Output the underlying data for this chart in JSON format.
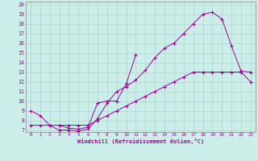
{
  "xlabel": "Windchill (Refroidissement éolien,°C)",
  "bg_color": "#cceee8",
  "line_color": "#990099",
  "grid_color": "#aacccc",
  "xlim": [
    -0.5,
    23.5
  ],
  "ylim": [
    6.8,
    20.3
  ],
  "xticks": [
    0,
    1,
    2,
    3,
    4,
    5,
    6,
    7,
    8,
    9,
    10,
    11,
    12,
    13,
    14,
    15,
    16,
    17,
    18,
    19,
    20,
    21,
    22,
    23
  ],
  "yticks": [
    7,
    8,
    9,
    10,
    11,
    12,
    13,
    14,
    15,
    16,
    17,
    18,
    19,
    20
  ],
  "line1_x": [
    0,
    1,
    2,
    3,
    4,
    5,
    6,
    7,
    8,
    9,
    10,
    11,
    12,
    13,
    14,
    15,
    16,
    17,
    18,
    19,
    20,
    21,
    22,
    23
  ],
  "line1_y": [
    9.0,
    8.5,
    7.5,
    7.0,
    7.0,
    6.9,
    7.1,
    8.2,
    9.8,
    11.0,
    11.5,
    12.2,
    13.2,
    14.5,
    15.5,
    16.0,
    17.0,
    18.0,
    19.0,
    19.2,
    18.5,
    15.7,
    13.1,
    13.0
  ],
  "line2_x": [
    0,
    1,
    2,
    3,
    4,
    5,
    6,
    7,
    8,
    9,
    10,
    11,
    12,
    13,
    14,
    15,
    16,
    17,
    18,
    19,
    20,
    21,
    22,
    23
  ],
  "line2_y": [
    7.5,
    7.5,
    7.5,
    7.5,
    7.5,
    7.5,
    7.5,
    8.0,
    8.5,
    9.0,
    9.5,
    10.0,
    10.5,
    11.0,
    11.5,
    12.0,
    12.5,
    13.0,
    13.0,
    13.0,
    13.0,
    13.0,
    13.0,
    12.0
  ],
  "line3_x": [
    3,
    4,
    5,
    6,
    7,
    8,
    9,
    10,
    11
  ],
  "line3_y": [
    7.5,
    7.2,
    7.1,
    7.3,
    9.8,
    10.0,
    10.0,
    11.8,
    14.8
  ]
}
